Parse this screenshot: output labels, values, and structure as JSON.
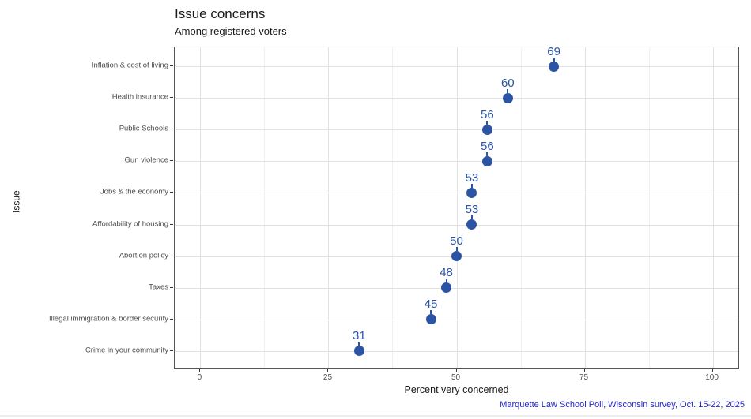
{
  "chart_data": {
    "type": "scatter",
    "title": "Issue concerns",
    "subtitle": "Among registered voters",
    "xlabel": "Percent very concerned",
    "ylabel": "Issue",
    "caption": "Marquette Law School Poll, Wisconsin survey, Oct. 15-22, 2025",
    "categories": [
      "Inflation & cost of living",
      "Health insurance",
      "Public Schools",
      "Gun violence",
      "Jobs & the economy",
      "Affordability of housing",
      "Abortion policy",
      "Taxes",
      "Illegal immigration & border security",
      "Crime in your community"
    ],
    "values": [
      69,
      60,
      56,
      56,
      53,
      53,
      50,
      48,
      45,
      31
    ],
    "x_ticks": [
      0,
      25,
      50,
      75,
      100
    ],
    "x_minor_ticks": [
      12.5,
      37.5,
      62.5,
      87.5
    ],
    "xlim": [
      -5,
      105
    ],
    "grid": true,
    "legend": "none",
    "point_color": "#2b54a4",
    "value_label_color": "#2b54a4",
    "caption_color": "#2424cc"
  }
}
